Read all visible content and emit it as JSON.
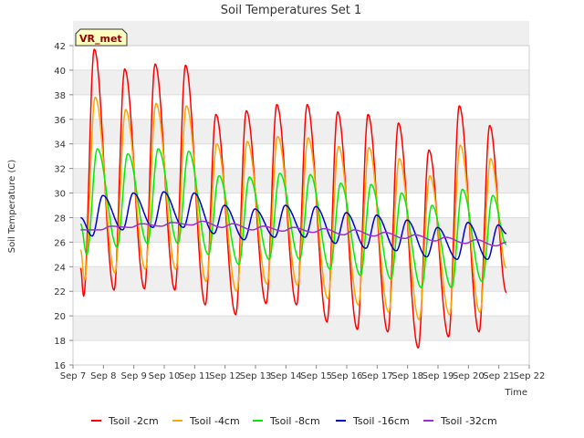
{
  "chart_data": {
    "type": "line",
    "title": "Soil Temperatures Set 1",
    "xlabel": "Time",
    "ylabel": "Soil Temperature (C)",
    "badge": "VR_met",
    "xlim": [
      "2024-09-07",
      "2024-09-22"
    ],
    "ylim": [
      16,
      42
    ],
    "x_ticks": [
      "Sep 7",
      "Sep 8",
      "Sep 9",
      "Sep 10",
      "Sep 11",
      "Sep 12",
      "Sep 13",
      "Sep 14",
      "Sep 15",
      "Sep 16",
      "Sep 17",
      "Sep 18",
      "Sep 19",
      "Sep 20",
      "Sep 21",
      "Sep 22"
    ],
    "y_ticks": [
      16,
      18,
      20,
      22,
      24,
      26,
      28,
      30,
      32,
      34,
      36,
      38,
      40,
      42
    ],
    "grid": "horizontal bands",
    "legend_position": "bottom",
    "x_start_day": 7.25,
    "x_end_day": 21.25,
    "peak_day_fraction": 0.6,
    "series": [
      {
        "name": "Tsoil -2cm",
        "color": "#ff0000",
        "start": 23.9,
        "end": 21.9,
        "delays": [
          0.0,
          0.0
        ],
        "daily_max": [
          41.7,
          40.1,
          40.5,
          40.4,
          36.4,
          36.7,
          37.2,
          37.2,
          36.6,
          36.4,
          35.7,
          33.5,
          37.1,
          35.5
        ],
        "daily_min": [
          21.6,
          22.1,
          22.2,
          22.1,
          20.9,
          20.1,
          21.0,
          20.9,
          19.5,
          18.9,
          18.7,
          17.4,
          18.3,
          18.7
        ]
      },
      {
        "name": "Tsoil -4cm",
        "color": "#ffa500",
        "start": 25.4,
        "end": 23.9,
        "delays": [
          0.03,
          0.03
        ],
        "daily_max": [
          37.8,
          36.8,
          37.3,
          37.1,
          34.0,
          34.2,
          34.6,
          34.5,
          33.8,
          33.7,
          32.8,
          31.4,
          33.9,
          32.8
        ],
        "daily_min": [
          22.9,
          23.5,
          23.8,
          23.8,
          22.8,
          22.0,
          22.6,
          22.5,
          21.4,
          20.9,
          20.3,
          19.7,
          20.1,
          20.3
        ]
      },
      {
        "name": "Tsoil -8cm",
        "color": "#00ee00",
        "start": 27.5,
        "end": 25.8,
        "delays": [
          0.1,
          0.1
        ],
        "daily_max": [
          33.6,
          33.2,
          33.6,
          33.4,
          31.4,
          31.3,
          31.6,
          31.5,
          30.8,
          30.7,
          30.0,
          29.0,
          30.3,
          29.8
        ],
        "daily_min": [
          25.0,
          25.6,
          25.9,
          25.9,
          25.0,
          24.2,
          24.6,
          24.6,
          23.8,
          23.3,
          23.0,
          22.3,
          22.3,
          22.8
        ]
      },
      {
        "name": "Tsoil -16cm",
        "color": "#0000cc",
        "start": 28.0,
        "end": 26.7,
        "delays": [
          0.28,
          0.28
        ],
        "daily_max": [
          29.8,
          30.0,
          30.1,
          30.0,
          29.0,
          28.7,
          29.0,
          28.9,
          28.4,
          28.2,
          27.8,
          27.2,
          27.6,
          27.4
        ],
        "daily_min": [
          26.5,
          27.0,
          27.2,
          27.2,
          26.7,
          26.2,
          26.4,
          26.4,
          25.9,
          25.5,
          25.3,
          24.8,
          24.6,
          24.6
        ]
      },
      {
        "name": "Tsoil -32cm",
        "color": "#9932cc",
        "start": 27.0,
        "end": 26.0,
        "delays": [
          0.55,
          0.55
        ],
        "daily_max": [
          27.3,
          27.5,
          27.6,
          27.7,
          27.5,
          27.3,
          27.2,
          27.1,
          27.0,
          26.8,
          26.6,
          26.4,
          26.2,
          26.0
        ],
        "daily_min": [
          27.0,
          27.2,
          27.3,
          27.4,
          27.2,
          27.0,
          26.9,
          26.8,
          26.6,
          26.5,
          26.3,
          26.1,
          25.9,
          25.7
        ]
      }
    ]
  }
}
